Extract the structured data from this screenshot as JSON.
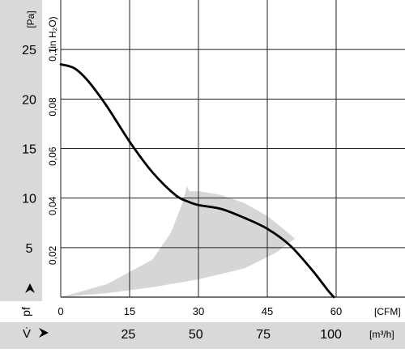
{
  "chart_data": {
    "type": "line",
    "title": "",
    "x_axis_cfm": {
      "unit_label": "[CFM]",
      "ticks": [
        0,
        15,
        30,
        45,
        60
      ],
      "range": [
        0,
        75
      ]
    },
    "x_axis_m3h": {
      "symbol": "V̇",
      "unit_label": "[m³/h]",
      "ticks": [
        25,
        50,
        75,
        100
      ]
    },
    "y_axis_pa": {
      "symbol": "pf",
      "unit_label": "[Pa]",
      "ticks": [
        5,
        10,
        15,
        20,
        25
      ],
      "range": [
        0,
        30
      ]
    },
    "y_axis_inh2o": {
      "unit_label": "(in H₂O)",
      "ticks": [
        "0,02",
        "0,04",
        "0,06",
        "0,08",
        "0,1"
      ]
    },
    "grid": true,
    "series": [
      {
        "x": [
          0,
          3,
          6,
          10,
          15,
          20,
          25,
          28,
          30,
          35,
          40,
          45,
          50,
          55,
          58,
          59.5
        ],
        "y": [
          23.5,
          23.1,
          21.8,
          19.3,
          15.7,
          12.6,
          10.3,
          9.6,
          9.3,
          8.9,
          8.0,
          6.9,
          5.2,
          2.6,
          0.8,
          0.0
        ]
      }
    ],
    "operating_area": {
      "x": [
        0,
        10,
        20,
        24,
        26.5,
        27.5,
        28,
        30,
        35,
        40,
        45,
        49,
        51,
        47,
        40,
        30,
        20,
        10,
        0
      ],
      "y": [
        0,
        1.3,
        3.8,
        6.5,
        9.5,
        11.2,
        10.7,
        10.7,
        10.3,
        9.5,
        8.2,
        6.7,
        5.9,
        4.5,
        2.9,
        1.8,
        1.0,
        0.4,
        0
      ],
      "color": "#d6d6d6"
    },
    "colors": {
      "curve": "#000000",
      "grid": "#222222",
      "axis_band": "#d9d9d9"
    }
  }
}
